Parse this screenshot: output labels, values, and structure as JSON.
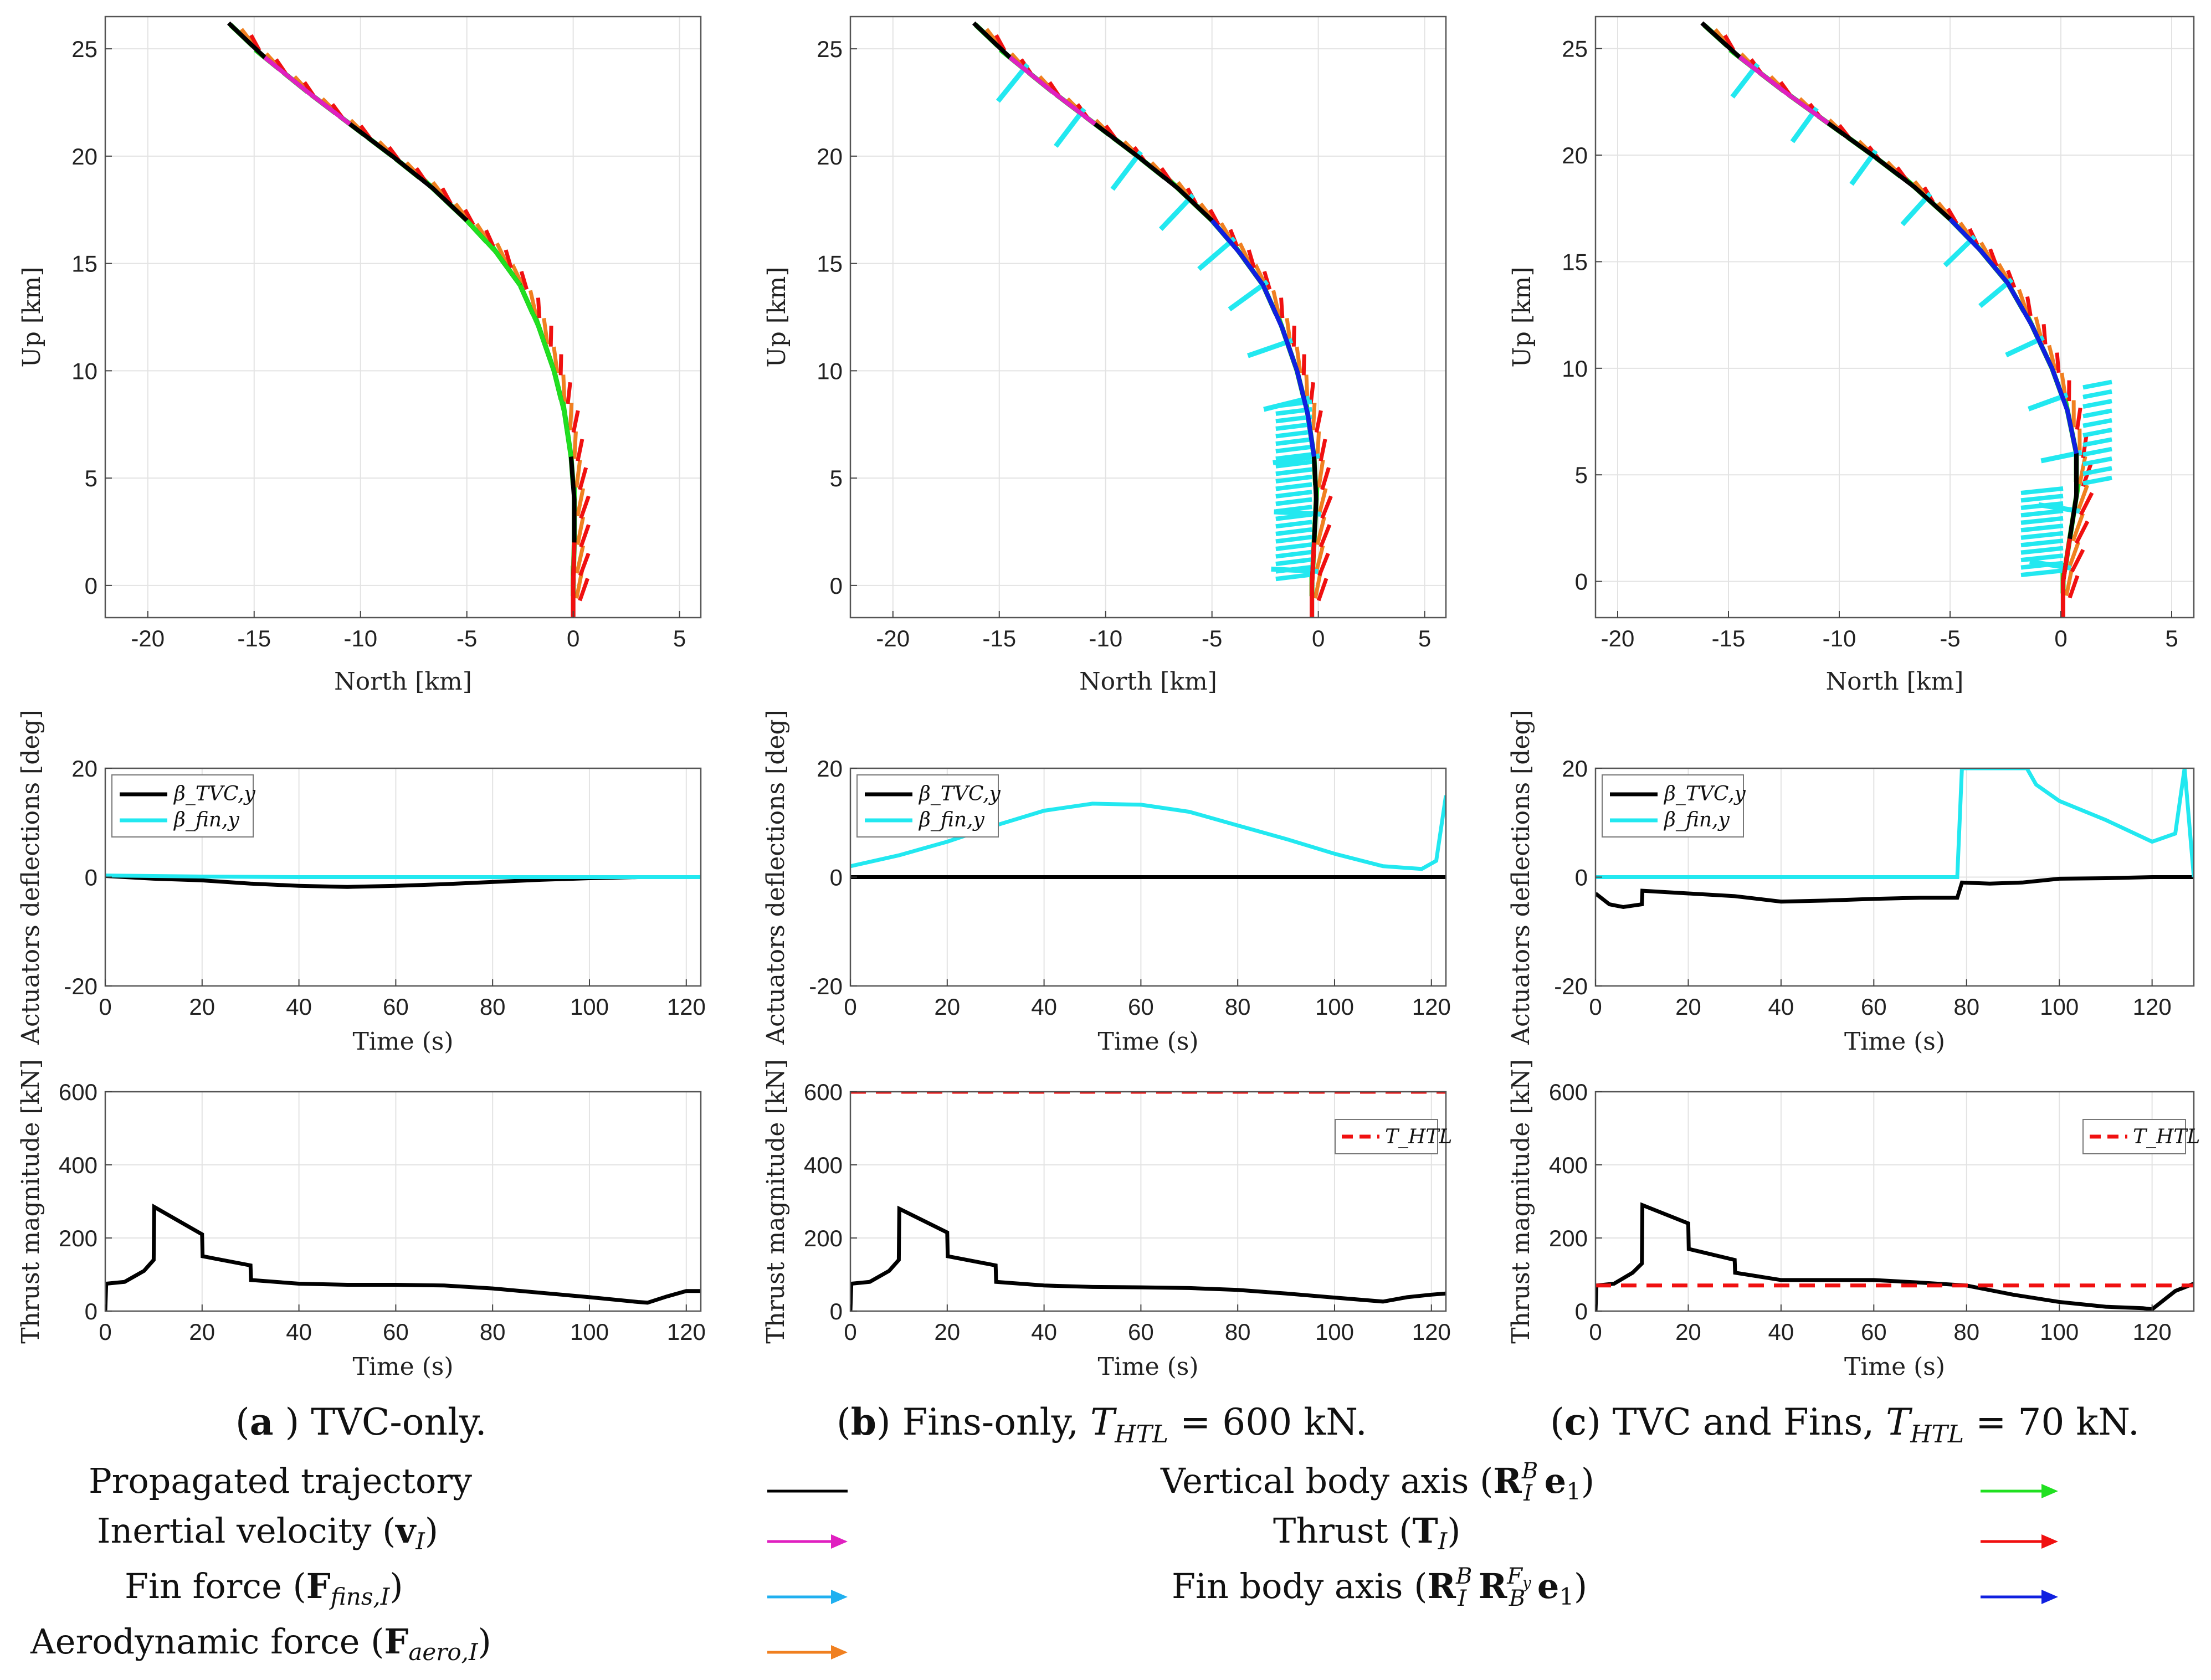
{
  "colors": {
    "trajectory": "#000000",
    "velocity": "#e020c0",
    "fin_force": "#20b0f0",
    "aero_force": "#f08020",
    "vertical_axis": "#20e020",
    "thrust": "#f01010",
    "fin_axis": "#1020e0",
    "fin_line": "#22e8f0",
    "tvc_line": "#000000",
    "htl": "#f01010"
  },
  "captions": [
    {
      "letter": "a",
      "text": ") TVC-only."
    },
    {
      "letter": "b",
      "text": ") Fins-only, T",
      "sub": "HTL",
      "tail": " = 600 kN."
    },
    {
      "letter": "c",
      "text": ") TVC and Fins, T",
      "sub": "HTL",
      "tail": " = 70 kN."
    }
  ],
  "legend": {
    "left": [
      {
        "label": "Propagated trajectory",
        "key": "trajectory",
        "style": "line"
      },
      {
        "label": "Inertial velocity (v_I)",
        "key": "velocity",
        "style": "arrow"
      },
      {
        "label": "Fin force (F_fins,I)",
        "key": "fin_force",
        "style": "arrow"
      },
      {
        "label": "Aerodynamic force (F_aero,I)",
        "key": "aero_force",
        "style": "arrow"
      }
    ],
    "right": [
      {
        "label": "Vertical body axis (R_I^B e_1)",
        "key": "vertical_axis",
        "style": "arrow"
      },
      {
        "label": "Thrust (T_I)",
        "key": "thrust",
        "style": "arrow"
      },
      {
        "label": "Fin body axis (R_I^B R_B^Fy e_1)",
        "key": "fin_axis",
        "style": "arrow"
      }
    ]
  },
  "chart_data": [
    {
      "id": "traj_a",
      "type": "line",
      "panel": "a",
      "xlabel": "North [km]",
      "ylabel": "Up [km]",
      "xlim": [
        -22,
        6
      ],
      "ylim": [
        -1.5,
        26.5
      ],
      "xticks": [
        -20,
        -15,
        -10,
        -5,
        0,
        5
      ],
      "yticks": [
        0,
        5,
        10,
        15,
        20,
        25
      ],
      "series": [
        {
          "name": "Propagated trajectory",
          "x": [
            0,
            0,
            0.05,
            0.05,
            -0.1,
            -0.4,
            -0.9,
            -1.6,
            -2.5,
            -3.6,
            -5,
            -6.6,
            -8.5,
            -10.5,
            -12.5,
            -14.5,
            -16.2
          ],
          "y": [
            -1.5,
            0,
            2,
            4,
            6,
            8,
            10,
            12,
            14,
            15.5,
            17,
            18.5,
            20,
            21.5,
            23,
            24.6,
            26.2
          ]
        }
      ]
    },
    {
      "id": "traj_b",
      "type": "line",
      "panel": "b",
      "xlabel": "North [km]",
      "ylabel": "Up [km]",
      "xlim": [
        -22,
        6
      ],
      "ylim": [
        -1.5,
        26.5
      ],
      "xticks": [
        -20,
        -15,
        -10,
        -5,
        0,
        5
      ],
      "yticks": [
        0,
        5,
        10,
        15,
        20,
        25
      ],
      "series": [
        {
          "name": "Propagated trajectory",
          "x": [
            -0.3,
            -0.3,
            -0.2,
            -0.1,
            -0.2,
            -0.5,
            -1,
            -1.7,
            -2.6,
            -3.7,
            -5,
            -6.6,
            -8.5,
            -10.5,
            -12.5,
            -14.5,
            -16.2
          ],
          "y": [
            -1.5,
            0,
            2,
            4,
            6,
            8,
            10,
            12,
            14,
            15.5,
            17,
            18.5,
            20,
            21.5,
            23,
            24.6,
            26.2
          ]
        }
      ]
    },
    {
      "id": "traj_c",
      "type": "line",
      "panel": "c",
      "xlabel": "North [km]",
      "ylabel": "Up [km]",
      "xlim": [
        -21,
        6
      ],
      "ylim": [
        -1.7,
        26.5
      ],
      "xticks": [
        -20,
        -15,
        -10,
        -5,
        0,
        5
      ],
      "yticks": [
        0,
        5,
        10,
        15,
        20,
        25
      ],
      "series": [
        {
          "name": "Propagated trajectory",
          "x": [
            0.1,
            0.1,
            0.4,
            0.7,
            0.7,
            0.3,
            -0.4,
            -1.3,
            -2.4,
            -3.6,
            -5,
            -6.6,
            -8.5,
            -10.5,
            -12.5,
            -14.5,
            -16.2
          ],
          "y": [
            -1.7,
            0,
            2,
            4,
            6,
            8,
            10,
            12,
            14,
            15.5,
            17,
            18.5,
            20,
            21.5,
            23,
            24.6,
            26.2
          ]
        }
      ]
    },
    {
      "id": "act_a",
      "type": "line",
      "panel": "a",
      "xlabel": "Time (s)",
      "ylabel": "Actuators deflections [deg]",
      "xlim": [
        0,
        123
      ],
      "ylim": [
        -20,
        20
      ],
      "xticks": [
        0,
        20,
        40,
        60,
        80,
        100,
        120
      ],
      "yticks": [
        -20,
        0,
        20
      ],
      "legend": [
        "β_TVC,y",
        "β_fin,y"
      ],
      "series": [
        {
          "name": "β_TVC,y",
          "x": [
            0,
            10,
            20,
            30,
            40,
            50,
            60,
            70,
            80,
            90,
            100,
            110,
            123
          ],
          "y": [
            0.2,
            -0.3,
            -0.6,
            -1.2,
            -1.6,
            -1.8,
            -1.6,
            -1.3,
            -0.9,
            -0.5,
            -0.2,
            0,
            0
          ]
        },
        {
          "name": "β_fin,y",
          "x": [
            0,
            20,
            40,
            60,
            80,
            100,
            123
          ],
          "y": [
            0.3,
            0.1,
            0,
            0,
            0,
            0,
            0
          ]
        }
      ]
    },
    {
      "id": "act_b",
      "type": "line",
      "panel": "b",
      "xlabel": "Time (s)",
      "ylabel": "Actuators deflections [deg]",
      "xlim": [
        0,
        123
      ],
      "ylim": [
        -20,
        20
      ],
      "xticks": [
        0,
        20,
        40,
        60,
        80,
        100,
        120
      ],
      "yticks": [
        -20,
        0,
        20
      ],
      "legend": [
        "β_TVC,y",
        "β_fin,y"
      ],
      "series": [
        {
          "name": "β_TVC,y",
          "x": [
            0,
            123
          ],
          "y": [
            0,
            0
          ]
        },
        {
          "name": "β_fin,y",
          "x": [
            0,
            10,
            20,
            30,
            40,
            50,
            60,
            70,
            80,
            90,
            100,
            110,
            118,
            121,
            123
          ],
          "y": [
            2,
            4,
            6.5,
            9.5,
            12.2,
            13.5,
            13.3,
            12,
            9.5,
            7,
            4.3,
            2,
            1.5,
            3,
            15
          ]
        }
      ]
    },
    {
      "id": "act_c",
      "type": "line",
      "panel": "c",
      "xlabel": "Time (s)",
      "ylabel": "Actuators deflections [deg]",
      "xlim": [
        0,
        129
      ],
      "ylim": [
        -20,
        20
      ],
      "xticks": [
        0,
        20,
        40,
        60,
        80,
        100,
        120
      ],
      "yticks": [
        -20,
        0,
        20
      ],
      "legend": [
        "β_TVC,y",
        "β_fin,y"
      ],
      "series": [
        {
          "name": "β_TVC,y",
          "x": [
            0,
            3,
            6,
            10,
            10.1,
            20,
            30,
            40,
            50,
            60,
            70,
            78,
            79,
            85,
            92,
            100,
            110,
            120,
            129
          ],
          "y": [
            -3,
            -5,
            -5.5,
            -5,
            -2.5,
            -3,
            -3.5,
            -4.5,
            -4.3,
            -4,
            -3.8,
            -3.8,
            -1,
            -1.2,
            -1,
            -0.3,
            -0.2,
            0,
            0
          ]
        },
        {
          "name": "β_fin,y",
          "x": [
            0,
            78,
            79,
            93,
            95,
            100,
            110,
            120,
            125,
            127,
            129
          ],
          "y": [
            0,
            0,
            20,
            20,
            17,
            14,
            10.5,
            6.5,
            8,
            20,
            0
          ]
        }
      ]
    },
    {
      "id": "thr_a",
      "type": "line",
      "panel": "a",
      "xlabel": "Time (s)",
      "ylabel": "Thrust magnitude [kN]",
      "xlim": [
        0,
        123
      ],
      "ylim": [
        0,
        600
      ],
      "xticks": [
        0,
        20,
        40,
        60,
        80,
        100,
        120
      ],
      "yticks": [
        0,
        200,
        400,
        600
      ],
      "series": [
        {
          "name": "Thrust",
          "x": [
            0,
            0.2,
            4,
            8,
            10,
            10.1,
            20,
            20.1,
            30,
            30.1,
            40,
            50,
            60,
            70,
            80,
            90,
            100,
            110,
            112,
            116,
            120,
            123
          ],
          "y": [
            0,
            75,
            80,
            110,
            140,
            285,
            210,
            150,
            125,
            85,
            75,
            72,
            72,
            70,
            62,
            50,
            38,
            25,
            23,
            40,
            55,
            55
          ]
        }
      ]
    },
    {
      "id": "thr_b",
      "type": "line",
      "panel": "b",
      "xlabel": "Time (s)",
      "ylabel": "Thrust magnitude [kN]",
      "xlim": [
        0,
        123
      ],
      "ylim": [
        0,
        600
      ],
      "xticks": [
        0,
        20,
        40,
        60,
        80,
        100,
        120
      ],
      "yticks": [
        0,
        200,
        400,
        600
      ],
      "legend": [
        "T_HTL"
      ],
      "series": [
        {
          "name": "Thrust",
          "x": [
            0,
            0.2,
            4,
            8,
            10,
            10.1,
            20,
            20.1,
            30,
            30.1,
            40,
            50,
            60,
            70,
            80,
            90,
            100,
            110,
            115,
            120,
            123
          ],
          "y": [
            0,
            75,
            80,
            110,
            140,
            280,
            215,
            150,
            125,
            80,
            70,
            66,
            65,
            63,
            58,
            48,
            37,
            26,
            38,
            45,
            48
          ]
        },
        {
          "name": "T_HTL",
          "x": [
            0,
            123
          ],
          "y": [
            600,
            600
          ]
        }
      ]
    },
    {
      "id": "thr_c",
      "type": "line",
      "panel": "c",
      "xlabel": "Time (s)",
      "ylabel": "Thrust magnitude [kN]",
      "xlim": [
        0,
        129
      ],
      "ylim": [
        0,
        600
      ],
      "xticks": [
        0,
        20,
        40,
        60,
        80,
        100,
        120
      ],
      "yticks": [
        0,
        200,
        400,
        600
      ],
      "legend": [
        "T_HTL"
      ],
      "series": [
        {
          "name": "Thrust",
          "x": [
            0,
            0.2,
            4,
            8,
            10,
            10.1,
            20,
            20.1,
            30,
            30.1,
            40,
            50,
            60,
            70,
            80,
            90,
            100,
            110,
            118,
            120,
            125,
            129
          ],
          "y": [
            0,
            70,
            75,
            105,
            130,
            290,
            240,
            170,
            140,
            105,
            85,
            85,
            85,
            78,
            70,
            45,
            25,
            12,
            8,
            5,
            55,
            75
          ]
        },
        {
          "name": "T_HTL",
          "x": [
            0,
            129
          ],
          "y": [
            70,
            70
          ]
        }
      ]
    }
  ]
}
